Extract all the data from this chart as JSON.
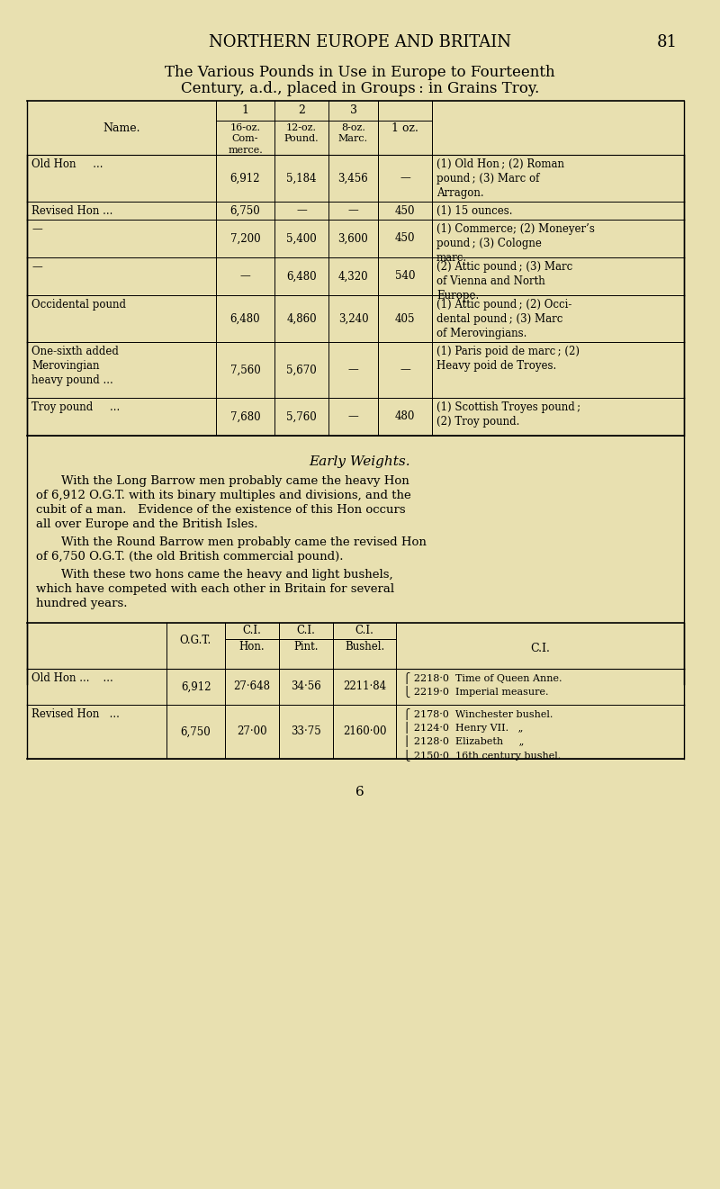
{
  "bg_color": "#e8e0b0",
  "page_header": "NORTHERN EUROPE AND BRITAIN",
  "page_number": "81",
  "table1_title_line1": "The Various Pounds in Use in Europe to Fourteenth",
  "table1_title_line2": "Century, a.d., placed in Groups : in Grains Troy.",
  "table1_col_headers": [
    "Name.",
    "1\n16-oz.\nCom-\nmerce.",
    "2\n12-oz.\nPound.",
    "3\n8-oz.\nMarc.",
    "1 oz.",
    ""
  ],
  "table1_rows": [
    [
      "Old Hon     ...",
      "6,912",
      "5,184",
      "3,456",
      "—",
      "(1) Old Hon ; (2) Roman\npound ; (3) Marc of\nArragon."
    ],
    [
      "Revised Hon ...",
      "6,750",
      "—",
      "—",
      "450",
      "(1) 15 ounces."
    ],
    [
      "—",
      "7,200",
      "5,400",
      "3,600",
      "450",
      "(1) Commerce; (2) Moneyer’s\npound ; (3) Cologne\nmarc."
    ],
    [
      "—",
      "—",
      "6,480",
      "4,320",
      "540",
      "(2) Attic pound ; (3) Marc\nof Vienna and North\nEurope."
    ],
    [
      "Occidental pound",
      "6,480",
      "4,860",
      "3,240",
      "405",
      "(1) Attic pound ; (2) Occi-\ndental pound ; (3) Marc\nof Merovingians."
    ],
    [
      "One-sixth added\nMerovingian\nheavy pound ...",
      "7,560",
      "5,670",
      "—",
      "—",
      "(1) Paris poid de marc ; (2)\nHeavy poid de Troyes."
    ],
    [
      "Troy pound     ...",
      "7,680",
      "5,760",
      "—",
      "480",
      "(1) Scottish Troyes pound ;\n(2) Troy pound."
    ]
  ],
  "section_title": "Early Weights.",
  "para1": "With the Long Barrow men probably came the heavy Hon\nof 6,912 O.G.T. with its binary multiples and divisions, and the\ncubit of a man.   Evidence of the existence of this Hon occurs\nall over Europe and the British Isles.",
  "para2": "With the Round Barrow men probably came the revised Hon\nof 6,750 O.G.T. (the old British commercial pound).",
  "para3": "With these two hons came the heavy and light bushels,\nwhich have competed with each other in Britain for several\nhundred years.",
  "table2_col_headers": [
    "",
    "O.G.T.",
    "C.I.\nHon.",
    "C.I.\nPint.",
    "C.I.\nBushel.",
    "C.I."
  ],
  "table2_rows": [
    [
      "Old Hon ...    ...",
      "6,912",
      "27·648",
      "34·56",
      "2211·84",
      "2218·0  Time of Queen Anne.\n2219·0  Imperial measure."
    ],
    [
      "Revised Hon   ...",
      "6,750",
      "27·00",
      "33·75",
      "2160·00",
      "2178·0  Winchester bushel.\n2124·0  Henry VII.   „\n2128·0  Elizabeth     „\n2150·0  16th century bushel."
    ]
  ],
  "page_footer": "6"
}
